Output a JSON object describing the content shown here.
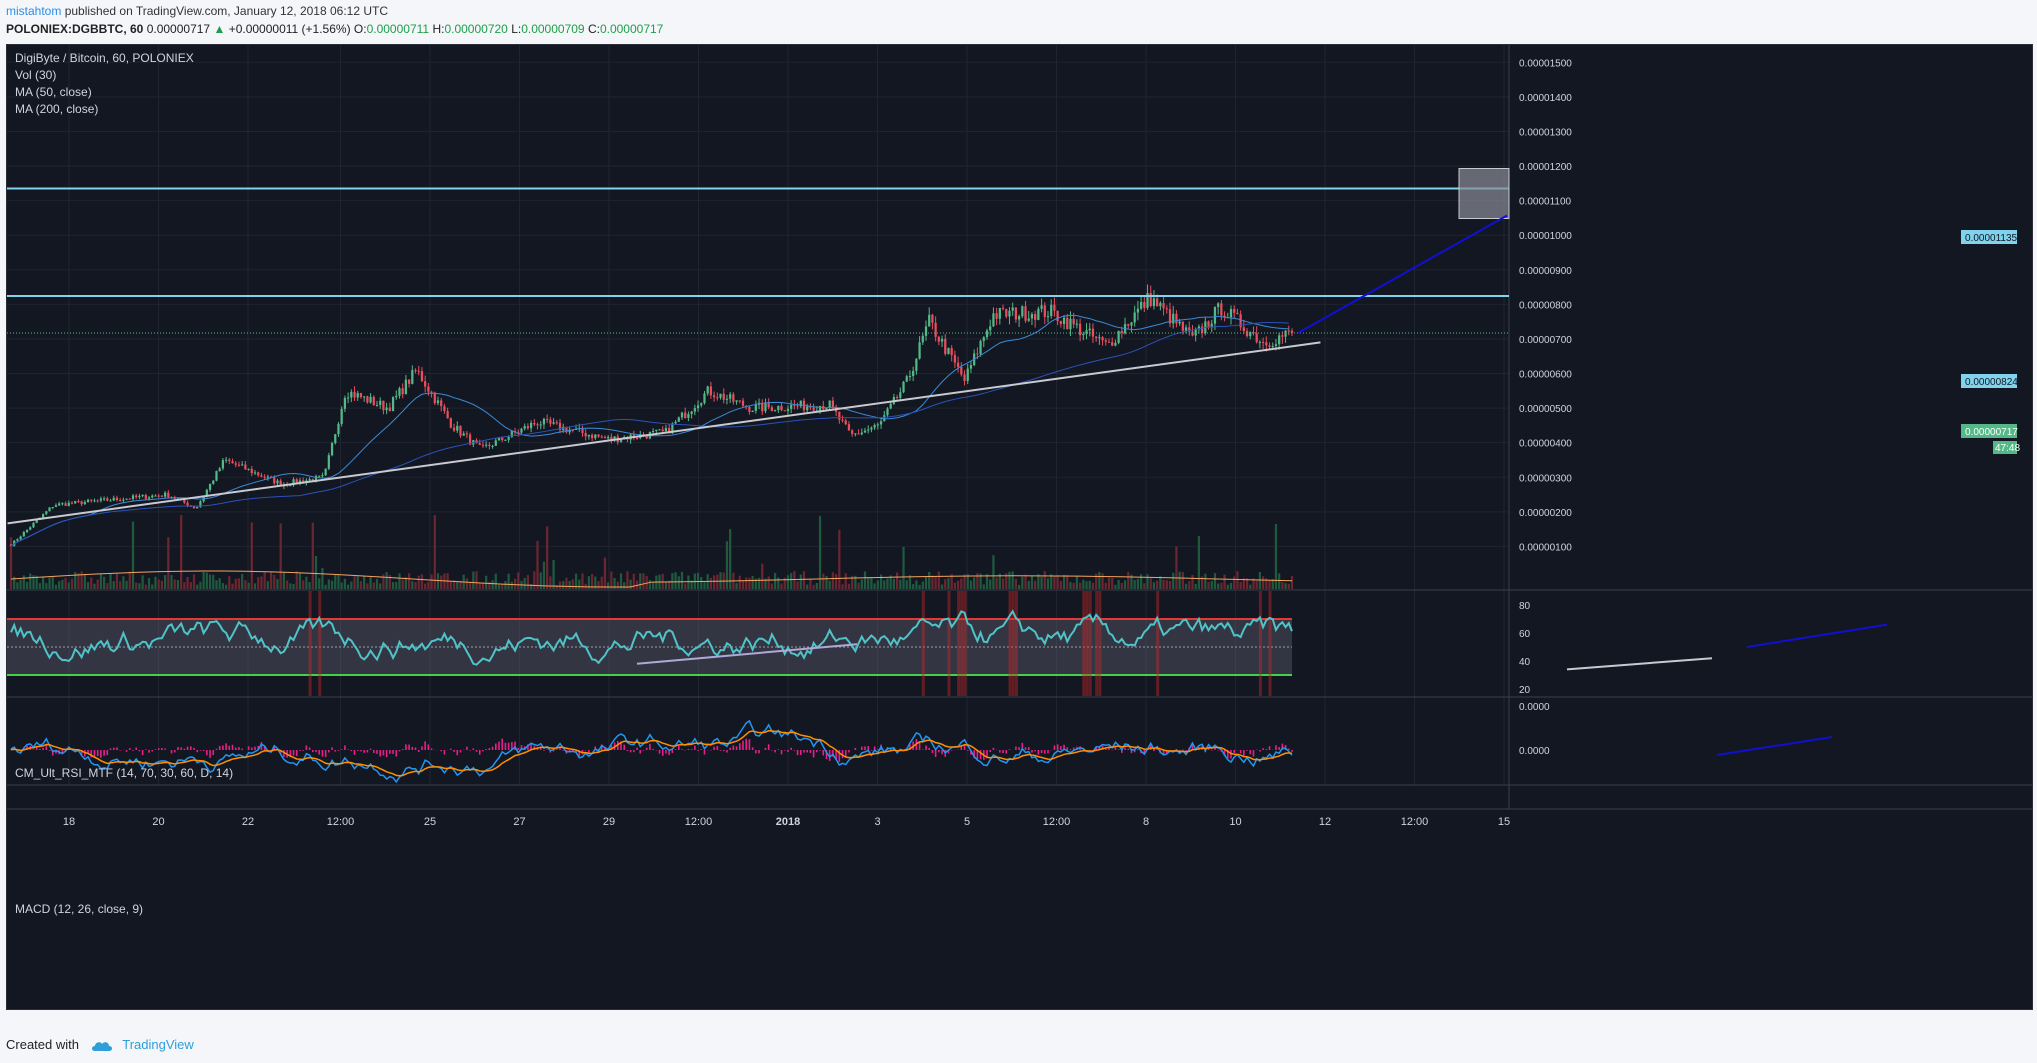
{
  "header": {
    "user": "mistahtom",
    "published": "published on TradingView.com, January 12, 2018 06:12 UTC",
    "symbol": "POLONIEX:DGBBTC, 60",
    "last": "0.00000717",
    "arrow": "▲",
    "change": "+0.00000011 (+1.56%)",
    "o_label": "O:",
    "o": "0.00000711",
    "h_label": "H:",
    "h": "0.00000720",
    "l_label": "L:",
    "l": "0.00000709",
    "c_label": "C:",
    "c": "0.00000717"
  },
  "legend": {
    "title": "DigiByte / Bitcoin, 60, POLONIEX",
    "vol": "Vol (30)",
    "ma50": "MA (50, close)",
    "ma200": "MA (200, close)"
  },
  "rsi_label": "CM_Ult_RSI_MTF (14, 70, 30, 60, D, 14)",
  "macd_label": "MACD (12, 26, close, 9)",
  "price_tags": {
    "resistance_high": "0.00001135",
    "resistance_low": "0.00000824",
    "last": "0.00000717",
    "countdown": "47:48"
  },
  "footer": {
    "created": "Created with",
    "brand": "TradingView"
  },
  "colors": {
    "background": "#131722",
    "up": "#53b987",
    "down": "#eb4d5c",
    "ma50": "#3a8bd8",
    "ma200": "#2b52b8",
    "resistance": "#7fd3ec",
    "rsi": "#4fc3c8",
    "macd": "#2196f3",
    "signal": "#ff8f00",
    "arrow": "#1010d0"
  },
  "chart_data": {
    "type": "candlestick",
    "pair": "DigiByte / Bitcoin",
    "exchange": "POLONIEX",
    "x_tick_labels": [
      "18",
      "20",
      "22",
      "12:00",
      "25",
      "27",
      "29",
      "12:00",
      "2018",
      "3",
      "5",
      "12:00",
      "8",
      "10",
      "12",
      "12:00",
      "15"
    ],
    "y_tick_labels": [
      "0.00000100",
      "0.00000200",
      "0.00000300",
      "0.00000400",
      "0.00000500",
      "0.00000600",
      "0.00000700",
      "0.00000800",
      "0.00000900",
      "0.00001000",
      "0.00001100",
      "0.00001200",
      "0.00001300",
      "0.00001400",
      "0.00001500"
    ],
    "ylim": [
      0,
      1.55e-05
    ],
    "approx_close_path": [
      {
        "x": 0,
        "y": 1.05e-06
      },
      {
        "x": 0.03,
        "y": 2.2e-06
      },
      {
        "x": 0.11,
        "y": 2.5e-06
      },
      {
        "x": 0.13,
        "y": 2.1e-06
      },
      {
        "x": 0.15,
        "y": 3.5e-06
      },
      {
        "x": 0.19,
        "y": 2.8e-06
      },
      {
        "x": 0.22,
        "y": 3e-06
      },
      {
        "x": 0.235,
        "y": 5.5e-06
      },
      {
        "x": 0.265,
        "y": 5e-06
      },
      {
        "x": 0.285,
        "y": 6.1e-06
      },
      {
        "x": 0.31,
        "y": 4.5e-06
      },
      {
        "x": 0.33,
        "y": 3.8e-06
      },
      {
        "x": 0.37,
        "y": 4.6e-06
      },
      {
        "x": 0.42,
        "y": 4.1e-06
      },
      {
        "x": 0.46,
        "y": 4.3e-06
      },
      {
        "x": 0.49,
        "y": 5.5e-06
      },
      {
        "x": 0.52,
        "y": 5e-06
      },
      {
        "x": 0.575,
        "y": 5.1e-06
      },
      {
        "x": 0.59,
        "y": 4.2e-06
      },
      {
        "x": 0.61,
        "y": 4.5e-06
      },
      {
        "x": 0.63,
        "y": 5.8e-06
      },
      {
        "x": 0.645,
        "y": 7.5e-06
      },
      {
        "x": 0.67,
        "y": 5.8e-06
      },
      {
        "x": 0.69,
        "y": 7.7e-06
      },
      {
        "x": 0.73,
        "y": 7.8e-06
      },
      {
        "x": 0.77,
        "y": 6.8e-06
      },
      {
        "x": 0.8,
        "y": 8.2e-06
      },
      {
        "x": 0.83,
        "y": 7e-06
      },
      {
        "x": 0.85,
        "y": 7.9e-06
      },
      {
        "x": 0.88,
        "y": 6.9e-06
      },
      {
        "x": 0.9,
        "y": 7.17e-06
      }
    ],
    "resistance_levels": [
      1.135e-05,
      8.24e-06
    ],
    "last_price": 7.17e-06,
    "trendline": [
      {
        "x": 0.11,
        "y": 2.1e-06
      },
      {
        "x": 0.92,
        "y": 6.9e-06
      }
    ],
    "rsi": {
      "upper": 70,
      "lower": 30,
      "ticks": [
        20,
        40,
        60,
        80
      ]
    },
    "macd": {
      "ticks": [
        "0.0000",
        "0.0000"
      ]
    }
  }
}
